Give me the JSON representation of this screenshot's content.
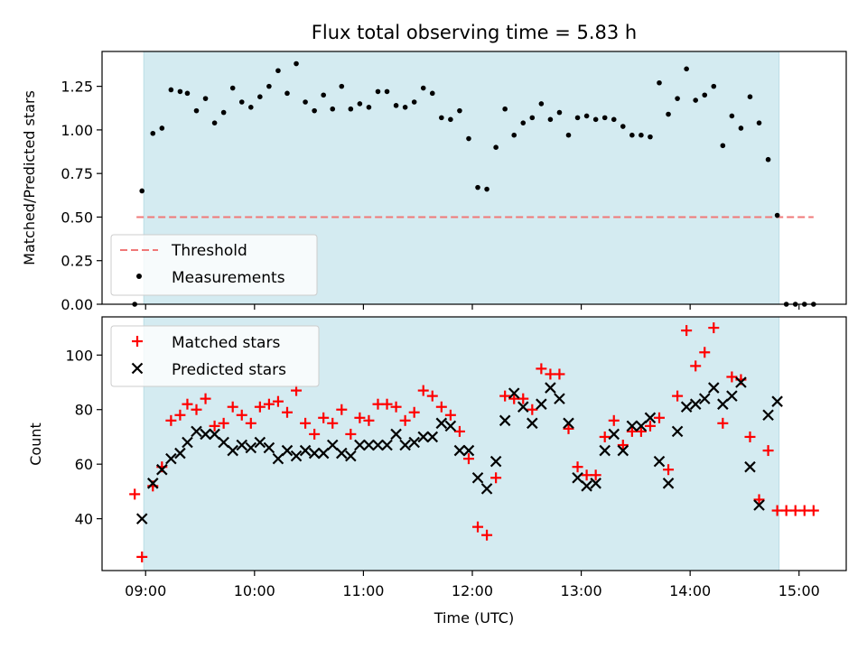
{
  "chart_data": [
    {
      "type": "scatter",
      "title": "Flux total observing time = 5.83 h",
      "xlabel": "",
      "ylabel": "Matched/Predicted stars",
      "xlim": [
        "08:36",
        "15:26"
      ],
      "ylim": [
        0,
        1.45
      ],
      "x_ticks": [
        "09:00",
        "10:00",
        "11:00",
        "12:00",
        "13:00",
        "14:00",
        "15:00"
      ],
      "y_ticks": [
        "0.00",
        "0.25",
        "0.50",
        "0.75",
        "1.00",
        "1.25"
      ],
      "y_tick_values": [
        0,
        0.25,
        0.5,
        0.75,
        1.0,
        1.25
      ],
      "grid": false,
      "legend": "lower-left",
      "observing_window": [
        "08:59",
        "14:49"
      ],
      "series": [
        {
          "name": "Threshold",
          "kind": "dashed-line",
          "x": [
            "08:55",
            "15:08"
          ],
          "y": [
            0.5,
            0.5
          ],
          "color": "#f07878"
        },
        {
          "name": "Measurements",
          "kind": "dots",
          "color": "#000000",
          "points": [
            [
              "08:54",
              0.0
            ],
            [
              "08:58",
              0.65
            ],
            [
              "09:04",
              0.98
            ],
            [
              "09:09",
              1.01
            ],
            [
              "09:14",
              1.23
            ],
            [
              "09:19",
              1.22
            ],
            [
              "09:23",
              1.21
            ],
            [
              "09:28",
              1.11
            ],
            [
              "09:33",
              1.18
            ],
            [
              "09:38",
              1.04
            ],
            [
              "09:43",
              1.1
            ],
            [
              "09:48",
              1.24
            ],
            [
              "09:53",
              1.16
            ],
            [
              "09:58",
              1.13
            ],
            [
              "10:03",
              1.19
            ],
            [
              "10:08",
              1.25
            ],
            [
              "10:13",
              1.34
            ],
            [
              "10:18",
              1.21
            ],
            [
              "10:23",
              1.38
            ],
            [
              "10:28",
              1.16
            ],
            [
              "10:33",
              1.11
            ],
            [
              "10:38",
              1.2
            ],
            [
              "10:43",
              1.12
            ],
            [
              "10:48",
              1.25
            ],
            [
              "10:53",
              1.12
            ],
            [
              "10:58",
              1.15
            ],
            [
              "11:03",
              1.13
            ],
            [
              "11:08",
              1.22
            ],
            [
              "11:13",
              1.22
            ],
            [
              "11:18",
              1.14
            ],
            [
              "11:23",
              1.13
            ],
            [
              "11:28",
              1.16
            ],
            [
              "11:33",
              1.24
            ],
            [
              "11:38",
              1.21
            ],
            [
              "11:43",
              1.07
            ],
            [
              "11:48",
              1.06
            ],
            [
              "11:53",
              1.11
            ],
            [
              "11:58",
              0.95
            ],
            [
              "12:03",
              0.67
            ],
            [
              "12:08",
              0.66
            ],
            [
              "12:13",
              0.9
            ],
            [
              "12:18",
              1.12
            ],
            [
              "12:23",
              0.97
            ],
            [
              "12:28",
              1.04
            ],
            [
              "12:33",
              1.07
            ],
            [
              "12:38",
              1.15
            ],
            [
              "12:43",
              1.06
            ],
            [
              "12:48",
              1.1
            ],
            [
              "12:53",
              0.97
            ],
            [
              "12:58",
              1.07
            ],
            [
              "13:03",
              1.08
            ],
            [
              "13:08",
              1.06
            ],
            [
              "13:13",
              1.07
            ],
            [
              "13:18",
              1.06
            ],
            [
              "13:23",
              1.02
            ],
            [
              "13:28",
              0.97
            ],
            [
              "13:33",
              0.97
            ],
            [
              "13:38",
              0.96
            ],
            [
              "13:43",
              1.27
            ],
            [
              "13:48",
              1.09
            ],
            [
              "13:53",
              1.18
            ],
            [
              "13:58",
              1.35
            ],
            [
              "14:03",
              1.17
            ],
            [
              "14:08",
              1.2
            ],
            [
              "14:13",
              1.25
            ],
            [
              "14:18",
              0.91
            ],
            [
              "14:23",
              1.08
            ],
            [
              "14:28",
              1.01
            ],
            [
              "14:33",
              1.19
            ],
            [
              "14:38",
              1.04
            ],
            [
              "14:43",
              0.83
            ],
            [
              "14:48",
              0.51
            ],
            [
              "14:53",
              0.0
            ],
            [
              "14:58",
              0.0
            ],
            [
              "15:03",
              0.0
            ],
            [
              "15:08",
              0.0
            ]
          ]
        }
      ]
    },
    {
      "type": "scatter",
      "title": "",
      "xlabel": "Time (UTC)",
      "ylabel": "Count",
      "xlim": [
        "08:36",
        "15:26"
      ],
      "ylim": [
        21,
        114
      ],
      "x_ticks": [
        "09:00",
        "10:00",
        "11:00",
        "12:00",
        "13:00",
        "14:00",
        "15:00"
      ],
      "y_ticks": [
        "40",
        "60",
        "80",
        "100"
      ],
      "y_tick_values": [
        40,
        60,
        80,
        100
      ],
      "grid": false,
      "legend": "upper-left",
      "observing_window": [
        "08:59",
        "14:49"
      ],
      "series": [
        {
          "name": "Matched stars",
          "kind": "plus",
          "color": "#ff0000",
          "points": [
            [
              "08:54",
              49
            ],
            [
              "08:58",
              26
            ],
            [
              "09:04",
              52
            ],
            [
              "09:09",
              59
            ],
            [
              "09:14",
              76
            ],
            [
              "09:19",
              78
            ],
            [
              "09:23",
              82
            ],
            [
              "09:28",
              80
            ],
            [
              "09:33",
              84
            ],
            [
              "09:38",
              74
            ],
            [
              "09:43",
              75
            ],
            [
              "09:48",
              81
            ],
            [
              "09:53",
              78
            ],
            [
              "09:58",
              75
            ],
            [
              "10:03",
              81
            ],
            [
              "10:08",
              82
            ],
            [
              "10:13",
              83
            ],
            [
              "10:18",
              79
            ],
            [
              "10:23",
              87
            ],
            [
              "10:28",
              75
            ],
            [
              "10:33",
              71
            ],
            [
              "10:38",
              77
            ],
            [
              "10:43",
              75
            ],
            [
              "10:48",
              80
            ],
            [
              "10:53",
              71
            ],
            [
              "10:58",
              77
            ],
            [
              "11:03",
              76
            ],
            [
              "11:08",
              82
            ],
            [
              "11:13",
              82
            ],
            [
              "11:18",
              81
            ],
            [
              "11:23",
              76
            ],
            [
              "11:28",
              79
            ],
            [
              "11:33",
              87
            ],
            [
              "11:38",
              85
            ],
            [
              "11:43",
              81
            ],
            [
              "11:48",
              78
            ],
            [
              "11:53",
              72
            ],
            [
              "11:58",
              62
            ],
            [
              "12:03",
              37
            ],
            [
              "12:08",
              34
            ],
            [
              "12:13",
              55
            ],
            [
              "12:18",
              85
            ],
            [
              "12:23",
              84
            ],
            [
              "12:28",
              84
            ],
            [
              "12:33",
              80
            ],
            [
              "12:38",
              95
            ],
            [
              "12:43",
              93
            ],
            [
              "12:48",
              93
            ],
            [
              "12:53",
              73
            ],
            [
              "12:58",
              59
            ],
            [
              "13:03",
              56
            ],
            [
              "13:08",
              56
            ],
            [
              "13:13",
              70
            ],
            [
              "13:18",
              76
            ],
            [
              "13:23",
              67
            ],
            [
              "13:28",
              72
            ],
            [
              "13:33",
              72
            ],
            [
              "13:38",
              74
            ],
            [
              "13:43",
              77
            ],
            [
              "13:48",
              58
            ],
            [
              "13:53",
              85
            ],
            [
              "13:58",
              109
            ],
            [
              "14:03",
              96
            ],
            [
              "14:08",
              101
            ],
            [
              "14:13",
              110
            ],
            [
              "14:18",
              75
            ],
            [
              "14:23",
              92
            ],
            [
              "14:28",
              91
            ],
            [
              "14:33",
              70
            ],
            [
              "14:38",
              47
            ],
            [
              "14:43",
              65
            ],
            [
              "14:48",
              43
            ],
            [
              "14:53",
              43
            ],
            [
              "14:58",
              43
            ],
            [
              "15:03",
              43
            ],
            [
              "15:08",
              43
            ]
          ]
        },
        {
          "name": "Predicted stars",
          "kind": "cross",
          "color": "#000000",
          "points": [
            [
              "08:58",
              40
            ],
            [
              "09:04",
              53
            ],
            [
              "09:09",
              58
            ],
            [
              "09:14",
              62
            ],
            [
              "09:19",
              64
            ],
            [
              "09:23",
              68
            ],
            [
              "09:28",
              72
            ],
            [
              "09:33",
              71
            ],
            [
              "09:38",
              71
            ],
            [
              "09:43",
              68
            ],
            [
              "09:48",
              65
            ],
            [
              "09:53",
              67
            ],
            [
              "09:58",
              66
            ],
            [
              "10:03",
              68
            ],
            [
              "10:08",
              66
            ],
            [
              "10:13",
              62
            ],
            [
              "10:18",
              65
            ],
            [
              "10:23",
              63
            ],
            [
              "10:28",
              65
            ],
            [
              "10:33",
              64
            ],
            [
              "10:38",
              64
            ],
            [
              "10:43",
              67
            ],
            [
              "10:48",
              64
            ],
            [
              "10:53",
              63
            ],
            [
              "10:58",
              67
            ],
            [
              "11:03",
              67
            ],
            [
              "11:08",
              67
            ],
            [
              "11:13",
              67
            ],
            [
              "11:18",
              71
            ],
            [
              "11:23",
              67
            ],
            [
              "11:28",
              68
            ],
            [
              "11:33",
              70
            ],
            [
              "11:38",
              70
            ],
            [
              "11:43",
              75
            ],
            [
              "11:48",
              74
            ],
            [
              "11:53",
              65
            ],
            [
              "11:58",
              65
            ],
            [
              "12:03",
              55
            ],
            [
              "12:08",
              51
            ],
            [
              "12:13",
              61
            ],
            [
              "12:18",
              76
            ],
            [
              "12:23",
              86
            ],
            [
              "12:28",
              81
            ],
            [
              "12:33",
              75
            ],
            [
              "12:38",
              82
            ],
            [
              "12:43",
              88
            ],
            [
              "12:48",
              84
            ],
            [
              "12:53",
              75
            ],
            [
              "12:58",
              55
            ],
            [
              "13:03",
              52
            ],
            [
              "13:08",
              53
            ],
            [
              "13:13",
              65
            ],
            [
              "13:18",
              71
            ],
            [
              "13:23",
              65
            ],
            [
              "13:28",
              74
            ],
            [
              "13:33",
              74
            ],
            [
              "13:38",
              77
            ],
            [
              "13:43",
              61
            ],
            [
              "13:48",
              53
            ],
            [
              "13:53",
              72
            ],
            [
              "13:58",
              81
            ],
            [
              "14:03",
              82
            ],
            [
              "14:08",
              84
            ],
            [
              "14:13",
              88
            ],
            [
              "14:18",
              82
            ],
            [
              "14:23",
              85
            ],
            [
              "14:28",
              90
            ],
            [
              "14:33",
              59
            ],
            [
              "14:38",
              45
            ],
            [
              "14:43",
              78
            ],
            [
              "14:48",
              83
            ]
          ]
        }
      ]
    }
  ]
}
